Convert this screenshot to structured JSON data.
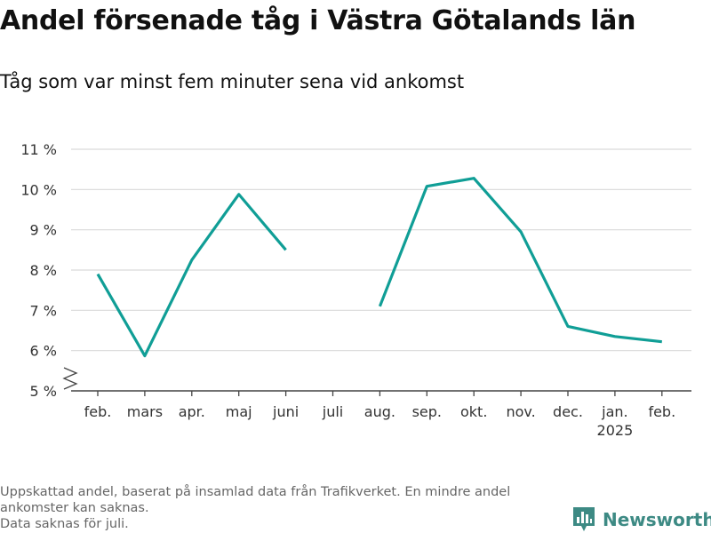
{
  "title": "Andel försenade tåg i Västra Götalands län",
  "subtitle": "Tåg som var minst fem minuter sena vid ankomst",
  "notes": [
    "Uppskattad andel, baserat på insamlad data från Trafikverket. En mindre andel",
    "ankomster kan saknas.",
    "Data saknas för juli."
  ],
  "brand": {
    "name": "Newsworthy",
    "icon": "bar-chart-icon",
    "color": "#3d8a84"
  },
  "chart_data": {
    "type": "line",
    "categories": [
      "feb.",
      "mars",
      "apr.",
      "maj",
      "juni",
      "juli",
      "aug.",
      "sep.",
      "okt.",
      "nov.",
      "dec.",
      "jan.",
      "feb."
    ],
    "category_sublabels": [
      "",
      "",
      "",
      "",
      "",
      "",
      "",
      "",
      "",
      "",
      "",
      "2025",
      ""
    ],
    "series": [
      {
        "values": [
          7.9,
          5.87,
          8.25,
          9.88,
          8.5,
          null,
          7.1,
          10.08,
          10.28,
          8.95,
          6.6,
          6.35,
          6.22
        ],
        "color": "#109e96"
      }
    ],
    "ylim": [
      5,
      11
    ],
    "yticks": [
      5,
      6,
      7,
      8,
      9,
      10,
      11
    ],
    "ytick_labels": [
      "5 %",
      "6 %",
      "7 %",
      "8 %",
      "9 %",
      "10 %",
      "11 %"
    ],
    "axis_break": true,
    "grid": true,
    "xlabel": "",
    "ylabel": ""
  }
}
